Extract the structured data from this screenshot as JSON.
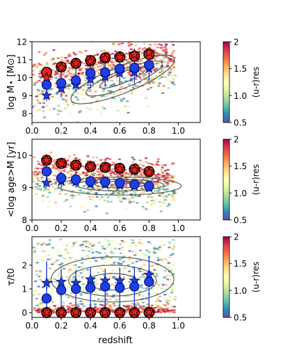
{
  "figure": {
    "shared_xlabel": "redshift"
  },
  "colors": {
    "hi_fill": "#e3231d",
    "hi_edge": "#000000",
    "lo_fill": "#1f3fe6",
    "lo_edge": "#08106e",
    "contour": "#3b4648",
    "colormap": [
      "#5e4fa2",
      "#3288bd",
      "#66c2a5",
      "#abdda4",
      "#e6f598",
      "#ffffbf",
      "#fee08b",
      "#fdae61",
      "#f46d43",
      "#d53e4f",
      "#9e0142"
    ]
  },
  "chart_data": [
    {
      "type": "scatter",
      "id": "mass",
      "title": "",
      "xlabel": "",
      "ylabel": "log M⋆ [M⊙]",
      "xlim": [
        0.0,
        1.15
      ],
      "ylim": [
        7.5,
        12.0
      ],
      "x_ticks": [
        "0.0",
        "0.2",
        "0.4",
        "0.6",
        "0.8",
        "1.0"
      ],
      "x_tick_values": [
        0.0,
        0.2,
        0.4,
        0.6,
        0.8,
        1.0
      ],
      "y_ticks": [
        "8",
        "9",
        "10",
        "11",
        "12"
      ],
      "y_tick_values": [
        8,
        9,
        10,
        11,
        12
      ],
      "colorbar": {
        "label": "(u-r)res",
        "ticks": [
          "0.5",
          "1.0",
          "1.5",
          "2"
        ],
        "range": [
          0.5,
          2.0
        ]
      },
      "x": [
        0.1,
        0.2,
        0.3,
        0.4,
        0.5,
        0.6,
        0.7,
        0.8
      ],
      "series": [
        {
          "name": "red median",
          "marker": "circle",
          "values": [
            10.3,
            10.6,
            10.8,
            10.95,
            11.1,
            11.15,
            11.2,
            11.3
          ]
        },
        {
          "name": "red mean",
          "marker": "star",
          "values": [
            10.0,
            10.55,
            10.8,
            10.9,
            11.05,
            11.15,
            11.3,
            11.4
          ]
        },
        {
          "name": "blue median",
          "marker": "circle",
          "values": [
            9.6,
            9.7,
            9.85,
            10.25,
            10.3,
            10.5,
            10.55,
            10.7
          ]
        },
        {
          "name": "blue mean",
          "marker": "star",
          "values": [
            9.0,
            9.4,
            9.6,
            9.9,
            10.05,
            10.25,
            10.3,
            10.5
          ]
        }
      ],
      "error_bars": {
        "series": "blue median",
        "lower": [
          8.7,
          8.9,
          9.2,
          9.4,
          9.5,
          9.6,
          9.7,
          9.85
        ],
        "upper": [
          10.3,
          10.3,
          10.5,
          10.7,
          10.8,
          10.95,
          11.0,
          11.05
        ]
      }
    },
    {
      "type": "scatter",
      "id": "age",
      "title": "",
      "xlabel": "",
      "ylabel": "<log age>M [yr]",
      "xlim": [
        0.0,
        1.15
      ],
      "ylim": [
        8.0,
        10.5
      ],
      "x_ticks": [
        "0.0",
        "0.2",
        "0.4",
        "0.6",
        "0.8",
        "1.0"
      ],
      "x_tick_values": [
        0.0,
        0.2,
        0.4,
        0.6,
        0.8,
        1.0
      ],
      "y_ticks": [
        "8",
        "9",
        "10"
      ],
      "y_tick_values": [
        8,
        9,
        10
      ],
      "colorbar": {
        "label": "(u-r)res",
        "ticks": [
          "0.5",
          "1.0",
          "1.5",
          "2"
        ],
        "range": [
          0.5,
          2.0
        ]
      },
      "x": [
        0.1,
        0.2,
        0.3,
        0.4,
        0.5,
        0.6,
        0.7,
        0.8
      ],
      "series": [
        {
          "name": "red median",
          "marker": "circle",
          "values": [
            9.85,
            9.75,
            9.7,
            9.65,
            9.63,
            9.6,
            9.57,
            9.5
          ]
        },
        {
          "name": "red mean",
          "marker": "star",
          "values": [
            9.85,
            9.75,
            9.7,
            9.65,
            9.62,
            9.58,
            9.55,
            9.47
          ]
        },
        {
          "name": "blue median",
          "marker": "circle",
          "values": [
            9.5,
            9.3,
            9.25,
            9.2,
            9.18,
            9.15,
            9.1,
            9.05
          ]
        },
        {
          "name": "blue mean",
          "marker": "star",
          "values": [
            9.15,
            9.2,
            9.18,
            9.12,
            9.1,
            9.08,
            9.05,
            9.0
          ]
        }
      ],
      "error_bars": {
        "series": "blue median",
        "lower": [
          9.0,
          9.0,
          9.0,
          9.0,
          8.98,
          8.95,
          8.95,
          8.9
        ],
        "upper": [
          9.8,
          9.5,
          9.45,
          9.38,
          9.35,
          9.3,
          9.25,
          9.2
        ]
      }
    },
    {
      "type": "scatter",
      "id": "tau",
      "title": "",
      "xlabel": "redshift",
      "ylabel": "τ/t0",
      "xlim": [
        0.0,
        1.15
      ],
      "ylim": [
        -0.2,
        3.2
      ],
      "x_ticks": [
        "0.0",
        "0.2",
        "0.4",
        "0.6",
        "0.8",
        "1.0"
      ],
      "x_tick_values": [
        0.0,
        0.2,
        0.4,
        0.6,
        0.8,
        1.0
      ],
      "y_ticks": [
        "0",
        "1",
        "2"
      ],
      "y_tick_values": [
        0,
        1,
        2
      ],
      "colorbar": {
        "label": "(u-r)res",
        "ticks": [
          "0.5",
          "1.0",
          "1.5",
          "2"
        ],
        "range": [
          0.5,
          2.0
        ]
      },
      "x": [
        0.1,
        0.2,
        0.3,
        0.4,
        0.5,
        0.6,
        0.7,
        0.8
      ],
      "series": [
        {
          "name": "red median",
          "marker": "circle",
          "values": [
            0.0,
            0.0,
            0.0,
            0.0,
            0.0,
            0.0,
            0.0,
            0.0
          ]
        },
        {
          "name": "red mean",
          "marker": "star",
          "values": [
            0.02,
            0.02,
            0.02,
            0.02,
            0.02,
            0.02,
            0.02,
            0.02
          ]
        },
        {
          "name": "blue median",
          "marker": "circle",
          "values": [
            0.6,
            0.95,
            1.0,
            1.05,
            1.1,
            1.05,
            1.1,
            1.3
          ]
        },
        {
          "name": "blue mean",
          "marker": "star",
          "values": [
            1.25,
            1.3,
            1.25,
            1.4,
            1.35,
            1.35,
            1.35,
            1.6
          ]
        }
      ],
      "error_bars": {
        "series": "blue median",
        "lower": [
          0.0,
          0.0,
          0.0,
          0.0,
          0.0,
          0.0,
          0.0,
          0.0
        ],
        "upper": [
          2.15,
          1.85,
          1.8,
          1.9,
          1.85,
          1.9,
          1.95,
          2.4
        ]
      }
    }
  ]
}
